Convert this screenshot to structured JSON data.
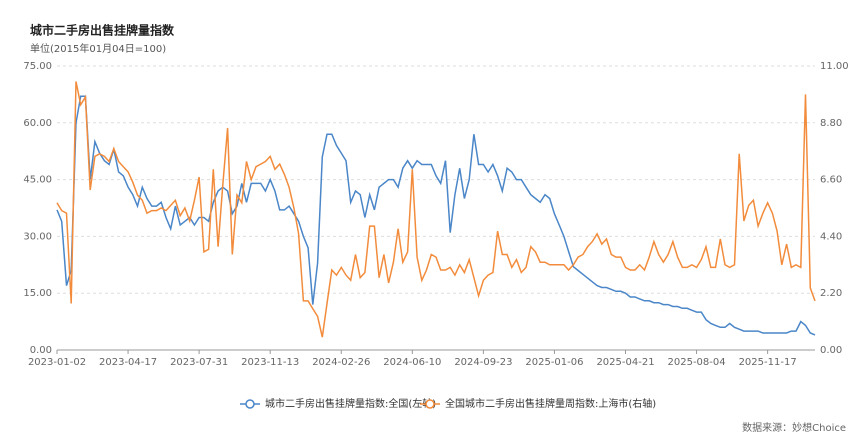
{
  "chart_data": {
    "type": "line",
    "title": "城市二手房出售挂牌量指数",
    "subtitle": "单位(2015年01月04日=100)",
    "source": "数据来源：妙想Choice",
    "categories": [
      "2023-01-02",
      null,
      null,
      null,
      null,
      null,
      null,
      null,
      null,
      null,
      null,
      null,
      null,
      null,
      null,
      "2023-04-17",
      null,
      null,
      null,
      null,
      null,
      null,
      null,
      null,
      null,
      null,
      null,
      null,
      null,
      null,
      "2023-07-31",
      null,
      null,
      null,
      null,
      null,
      null,
      null,
      null,
      null,
      null,
      null,
      null,
      null,
      null,
      "2023-11-13",
      null,
      null,
      null,
      null,
      null,
      null,
      null,
      null,
      null,
      null,
      null,
      null,
      null,
      null,
      "2024-02-26",
      null,
      null,
      null,
      null,
      null,
      null,
      null,
      null,
      null,
      null,
      null,
      null,
      null,
      null,
      "2024-06-10",
      null,
      null,
      null,
      null,
      null,
      null,
      null,
      null,
      null,
      null,
      null,
      null,
      null,
      null,
      "2024-09-23",
      null,
      null,
      null,
      null,
      null,
      null,
      null,
      null,
      null,
      null,
      null,
      null,
      null,
      null,
      "2025-01-06",
      null,
      null,
      null,
      null,
      null,
      null,
      null,
      null,
      null,
      null,
      null,
      null,
      null,
      null,
      "2025-04-21",
      null,
      null,
      null,
      null,
      null,
      null,
      null,
      null,
      null,
      null,
      null,
      null,
      null,
      null,
      "2025-08-04",
      null,
      null,
      null,
      null,
      null,
      null,
      null,
      null,
      null,
      null,
      null,
      null,
      null,
      null,
      "2025-11-17",
      null,
      null,
      null,
      null,
      null,
      null,
      null,
      null,
      null,
      null
    ],
    "series": [
      {
        "name": "城市二手房出售挂牌量指数:全国(左轴)",
        "color": "#4a86c8",
        "axis": "y",
        "values": [
          37,
          34,
          17,
          21,
          60,
          67,
          67,
          45,
          55,
          52,
          50,
          49,
          53,
          47,
          46,
          43,
          41,
          38,
          43,
          40,
          38,
          38,
          39,
          35,
          32,
          38,
          33,
          34,
          35,
          33,
          35,
          35,
          34,
          39,
          42,
          43,
          42,
          36,
          38,
          44,
          39,
          44,
          44,
          44,
          42,
          45,
          42,
          37,
          37,
          38,
          36,
          34,
          30,
          27,
          12,
          23,
          51,
          57,
          57,
          54,
          52,
          50,
          39,
          42,
          41,
          35,
          41,
          37,
          43,
          44,
          45,
          45,
          43,
          48,
          50,
          48,
          50,
          49,
          49,
          49,
          46,
          44,
          50,
          31,
          41,
          48,
          40,
          45,
          57,
          49,
          49,
          47,
          49,
          46,
          42,
          48,
          47,
          45,
          45,
          43,
          41,
          40,
          39,
          41,
          40,
          36,
          33,
          30,
          26,
          22,
          21,
          20,
          19,
          18,
          17,
          16.5,
          16.5,
          16,
          15.5,
          15.5,
          15,
          14,
          14,
          13.5,
          13,
          13,
          12.5,
          12.5,
          12,
          12,
          11.5,
          11.5,
          11,
          11,
          10.5,
          10,
          10,
          8,
          7,
          6.5,
          6,
          6,
          7,
          6,
          5.5,
          5,
          5,
          5,
          5,
          4.5,
          4.5,
          4.5,
          4.5,
          4.5,
          4.5,
          5,
          5,
          7.5,
          6.5,
          4.5,
          4
        ]
      },
      {
        "name": "全国城市二手房出售挂牌量周指数:上海市(右轴)",
        "color": "#f28c3c",
        "axis": "y2",
        "values": [
          5.7,
          5.4,
          5.3,
          1.8,
          10.4,
          9.5,
          9.8,
          6.2,
          7.5,
          7.6,
          7.5,
          7.3,
          7.8,
          7.3,
          7.1,
          6.9,
          6.5,
          6.0,
          5.8,
          5.3,
          5.4,
          5.4,
          5.5,
          5.4,
          5.6,
          5.8,
          5.2,
          5.5,
          5.0,
          5.8,
          6.7,
          3.8,
          3.9,
          7.0,
          4.0,
          6.4,
          8.6,
          3.7,
          6.0,
          5.7,
          7.3,
          6.6,
          7.1,
          7.2,
          7.3,
          7.5,
          7.0,
          7.2,
          6.8,
          6.3,
          5.5,
          4.5,
          1.9,
          1.9,
          1.6,
          1.3,
          0.5,
          1.8,
          3.1,
          2.9,
          3.2,
          2.9,
          2.7,
          3.7,
          2.8,
          3.0,
          4.8,
          4.8,
          2.8,
          3.7,
          2.6,
          3.4,
          4.7,
          3.4,
          3.8,
          7.0,
          3.6,
          2.7,
          3.1,
          3.7,
          3.6,
          3.1,
          3.1,
          3.2,
          2.9,
          3.3,
          3.0,
          3.5,
          2.8,
          2.1,
          2.7,
          2.9,
          3.0,
          4.6,
          3.7,
          3.7,
          3.2,
          3.5,
          3.0,
          3.2,
          4.0,
          3.8,
          3.4,
          3.4,
          3.3,
          3.3,
          3.3,
          3.3,
          3.1,
          3.3,
          3.6,
          3.7,
          4.0,
          4.2,
          4.5,
          4.1,
          4.3,
          3.7,
          3.6,
          3.6,
          3.2,
          3.1,
          3.1,
          3.3,
          3.1,
          3.6,
          4.2,
          3.7,
          3.4,
          3.7,
          4.2,
          3.6,
          3.2,
          3.2,
          3.3,
          3.2,
          3.5,
          4.0,
          3.2,
          3.2,
          4.3,
          3.3,
          3.2,
          3.3,
          7.6,
          5.0,
          5.6,
          5.8,
          4.8,
          5.3,
          5.7,
          5.3,
          4.6,
          3.3,
          4.1,
          3.2,
          3.3,
          3.2,
          9.9,
          2.4,
          1.9
        ]
      }
    ],
    "ylim": [
      0,
      75
    ],
    "yticks": [
      {
        "value": 0,
        "label": "0.00"
      },
      {
        "value": 15,
        "label": "15.00"
      },
      {
        "value": 30,
        "label": "30.00"
      },
      {
        "value": 45,
        "label": "45.00"
      },
      {
        "value": 60,
        "label": "60.00"
      },
      {
        "value": 75,
        "label": "75.00"
      }
    ],
    "y2lim": [
      0,
      11
    ],
    "y2ticks": [
      {
        "value": 0,
        "label": "0.00"
      },
      {
        "value": 2.2,
        "label": "2.20"
      },
      {
        "value": 4.4,
        "label": "4.40"
      },
      {
        "value": 6.6,
        "label": "6.60"
      },
      {
        "value": 8.8,
        "label": "8.80"
      },
      {
        "value": 11,
        "label": "11.00"
      }
    ],
    "grid": true
  }
}
